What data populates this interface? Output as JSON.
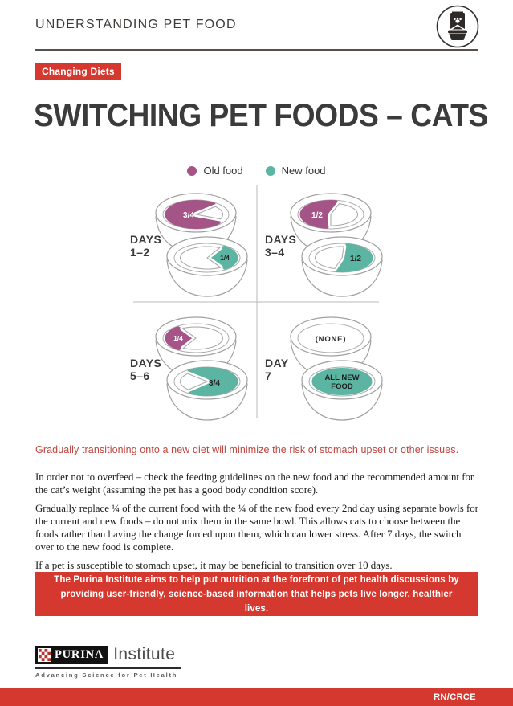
{
  "colors": {
    "old_food": "#a55487",
    "new_food": "#5bb5a2",
    "red": "#d4382e",
    "red_text": "#c0453e",
    "dark": "#3b3b3b",
    "outline": "#9f9f9f"
  },
  "header": {
    "title": "UNDERSTANDING PET FOOD",
    "icon": "pet-food-bag-and-bowl-icon"
  },
  "badge_label": "Changing Diets",
  "page_title": "SWITCHING PET FOODS – CATS",
  "legend": [
    {
      "label": "Old food",
      "color_key": "old_food"
    },
    {
      "label": "New food",
      "color_key": "new_food"
    }
  ],
  "diagram": {
    "quadrants": [
      {
        "day_word": "DAYS",
        "day_range": "1–2",
        "top_bowl": {
          "food": "old",
          "fraction": "3/4",
          "label": "3/4"
        },
        "bottom_bowl": {
          "food": "new",
          "fraction": "1/4",
          "label": "1/4"
        }
      },
      {
        "day_word": "DAYS",
        "day_range": "3–4",
        "top_bowl": {
          "food": "old",
          "fraction": "1/2",
          "label": "1/2"
        },
        "bottom_bowl": {
          "food": "new",
          "fraction": "1/2",
          "label": "1/2"
        }
      },
      {
        "day_word": "DAYS",
        "day_range": "5–6",
        "top_bowl": {
          "food": "old",
          "fraction": "1/4",
          "label": "1/4"
        },
        "bottom_bowl": {
          "food": "new",
          "fraction": "3/4",
          "label": "3/4"
        }
      },
      {
        "day_word": "DAY",
        "day_range": "7",
        "top_bowl": {
          "food": "old",
          "fraction": "0",
          "label": "(NONE)"
        },
        "bottom_bowl": {
          "food": "new",
          "fraction": "1",
          "label": "ALL NEW FOOD"
        }
      }
    ]
  },
  "highlight": "Gradually transitioning onto a new diet will minimize the risk of stomach upset or other issues.",
  "paragraphs": [
    "In order not to overfeed – check the feeding guidelines on the new food and the recommended amount for the cat’s weight (assuming the pet has a good body condition score).",
    "Gradually replace ¼ of the current food with the ¼ of the new food every 2nd day using separate bowls for the current and new foods – do not mix them in the same bowl. This allows cats to choose between the foods rather than having the change forced upon them, which can lower stress. After 7 days, the switch over to the new food is complete.",
    "If a pet is susceptible to stomach upset, it may be beneficial to transition over 10 days."
  ],
  "callout": "The Purina Institute aims to help put nutrition at the forefront of pet health discussions by providing user-friendly, science-based information that helps pets live longer, healthier lives.",
  "logo": {
    "brand": "PURINA",
    "suffix": "Institute",
    "tagline": "Advancing Science for Pet Health"
  },
  "footer": {
    "code": "RN/CRCE"
  }
}
